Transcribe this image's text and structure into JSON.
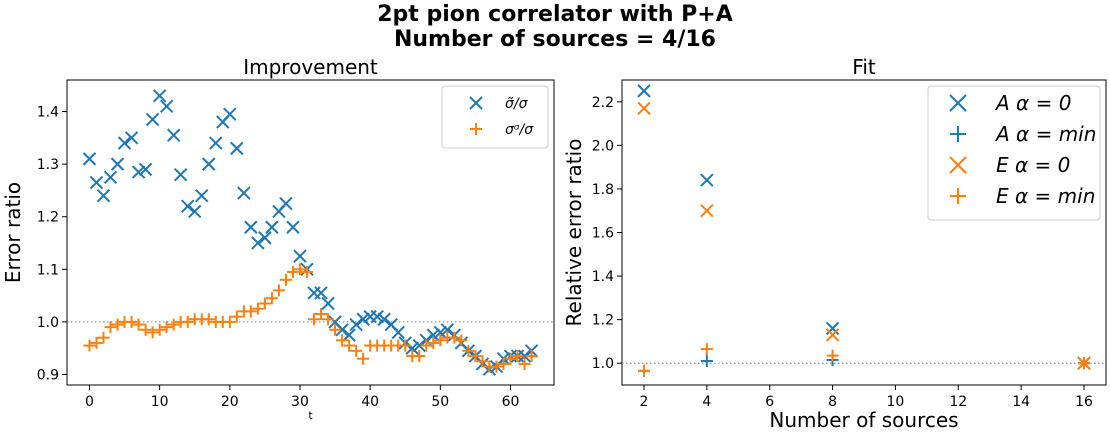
{
  "suptitle": [
    "2pt pion correlator with P+A",
    "Number of sources = 4/16"
  ],
  "colors": {
    "blue": "#1f77b4",
    "orange": "#ff7f0e",
    "ref_line": "#7f7f7f"
  },
  "chart_data": [
    {
      "type": "scatter",
      "title": "Improvement",
      "xlabel": "t",
      "ylabel": "Error ratio",
      "xlim": [
        -3.2,
        66.2
      ],
      "ylim": [
        0.88,
        1.46
      ],
      "xticks": [
        0,
        10,
        20,
        30,
        40,
        50,
        60
      ],
      "yticks": [
        0.9,
        1.0,
        1.1,
        1.2,
        1.3,
        1.4
      ],
      "reference_line": 1.0,
      "grid": false,
      "legend_position": "top-right",
      "series": [
        {
          "name": "σ̃/σ",
          "marker": "x",
          "color": "blue",
          "x": [
            0,
            1,
            2,
            3,
            4,
            5,
            6,
            7,
            8,
            9,
            10,
            11,
            12,
            13,
            14,
            15,
            16,
            17,
            18,
            19,
            20,
            21,
            22,
            23,
            24,
            25,
            26,
            27,
            28,
            29,
            30,
            31,
            32,
            33,
            34,
            35,
            36,
            37,
            38,
            39,
            40,
            41,
            42,
            43,
            44,
            45,
            46,
            47,
            48,
            49,
            50,
            51,
            52,
            53,
            54,
            55,
            56,
            57,
            58,
            59,
            60,
            61,
            62,
            63
          ],
          "y": [
            1.31,
            1.265,
            1.24,
            1.275,
            1.3,
            1.34,
            1.35,
            1.285,
            1.29,
            1.385,
            1.43,
            1.41,
            1.355,
            1.28,
            1.22,
            1.21,
            1.24,
            1.3,
            1.34,
            1.38,
            1.395,
            1.33,
            1.245,
            1.18,
            1.15,
            1.16,
            1.18,
            1.21,
            1.225,
            1.18,
            1.125,
            1.1,
            1.055,
            1.055,
            1.035,
            1.0,
            0.985,
            0.975,
            0.995,
            1.005,
            1.01,
            1.01,
            1.005,
            0.995,
            0.98,
            0.96,
            0.95,
            0.955,
            0.965,
            0.975,
            0.98,
            0.985,
            0.975,
            0.96,
            0.945,
            0.935,
            0.92,
            0.91,
            0.915,
            0.93,
            0.935,
            0.935,
            0.935,
            0.945
          ]
        },
        {
          "name": "σᵅ/σ",
          "marker": "+",
          "color": "orange",
          "x": [
            0,
            1,
            2,
            3,
            4,
            5,
            6,
            7,
            8,
            9,
            10,
            11,
            12,
            13,
            14,
            15,
            16,
            17,
            18,
            19,
            20,
            21,
            22,
            23,
            24,
            25,
            26,
            27,
            28,
            29,
            30,
            31,
            32,
            33,
            34,
            35,
            36,
            37,
            38,
            39,
            40,
            41,
            42,
            43,
            44,
            45,
            46,
            47,
            48,
            49,
            50,
            51,
            52,
            53,
            54,
            55,
            56,
            57,
            58,
            59,
            60,
            61,
            62,
            63
          ],
          "y": [
            0.955,
            0.96,
            0.97,
            0.99,
            0.995,
            1.0,
            1.0,
            0.995,
            0.985,
            0.98,
            0.985,
            0.99,
            0.995,
            1.0,
            1.0,
            1.005,
            1.005,
            1.005,
            1.0,
            1.0,
            1.0,
            1.01,
            1.02,
            1.02,
            1.025,
            1.035,
            1.045,
            1.06,
            1.08,
            1.095,
            1.1,
            1.095,
            1.005,
            1.015,
            1.005,
            0.985,
            0.965,
            0.955,
            0.945,
            0.93,
            0.955,
            0.955,
            0.955,
            0.955,
            0.955,
            0.955,
            0.935,
            0.935,
            0.955,
            0.96,
            0.965,
            0.97,
            0.97,
            0.965,
            0.945,
            0.935,
            0.925,
            0.915,
            0.915,
            0.92,
            0.93,
            0.935,
            0.92,
            0.935
          ]
        }
      ]
    },
    {
      "type": "scatter",
      "title": "Fit",
      "xlabel": "Number of sources",
      "ylabel": "Relative error ratio",
      "xlim": [
        1.3,
        16.7
      ],
      "ylim": [
        0.9,
        2.3
      ],
      "xticks": [
        2,
        4,
        6,
        8,
        10,
        12,
        14,
        16
      ],
      "yticks": [
        1.0,
        1.2,
        1.4,
        1.6,
        1.8,
        2.0,
        2.2
      ],
      "reference_line": 1.0,
      "grid": false,
      "legend_position": "top-right",
      "series": [
        {
          "name": "A α = 0",
          "marker": "x",
          "color": "blue",
          "x": [
            2,
            4,
            8,
            16
          ],
          "y": [
            2.25,
            1.84,
            1.16,
            1.0
          ]
        },
        {
          "name": "A α = min",
          "marker": "+",
          "color": "blue",
          "x": [
            2,
            4,
            8,
            16
          ],
          "y": [
            0.965,
            1.01,
            1.015,
            1.0
          ]
        },
        {
          "name": "E α = 0",
          "marker": "x",
          "color": "orange",
          "x": [
            2,
            4,
            8,
            16
          ],
          "y": [
            2.17,
            1.7,
            1.13,
            1.0
          ]
        },
        {
          "name": "E α = min",
          "marker": "+",
          "color": "orange",
          "x": [
            2,
            4,
            8,
            16
          ],
          "y": [
            0.965,
            1.065,
            1.035,
            1.0
          ]
        }
      ]
    }
  ]
}
